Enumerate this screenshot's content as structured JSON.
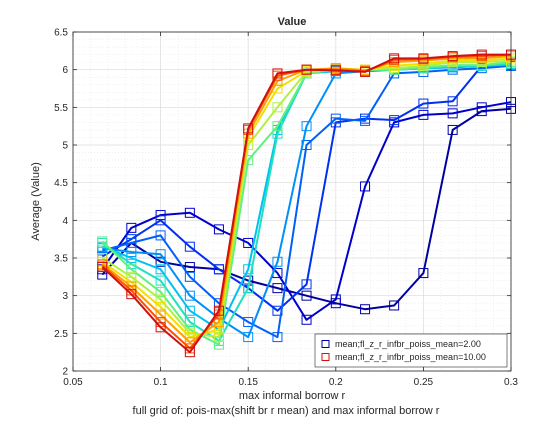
{
  "chart_data": {
    "type": "line",
    "title": "Value",
    "xlabel": "max informal borrow r",
    "ylabel": "Average (Value)",
    "caption": "full grid of: pois-max(shift br r mean) and max informal borrow r",
    "xlim": [
      0.05,
      0.3
    ],
    "ylim": [
      2,
      6.5
    ],
    "xticks": [
      0.05,
      0.1,
      0.15,
      0.2,
      0.25,
      0.3
    ],
    "xtick_labels": [
      "0.05",
      "0.1",
      "0.15",
      "0.2",
      "0.25",
      "0.3"
    ],
    "yticks": [
      2,
      2.5,
      3,
      3.5,
      4,
      4.5,
      5,
      5.5,
      6,
      6.5
    ],
    "ytick_labels": [
      "2",
      "2.5",
      "3",
      "3.5",
      "4",
      "4.5",
      "5",
      "5.5",
      "6",
      "6.5"
    ],
    "grid": true,
    "minor_grid": true,
    "legend_position": "bottom-right",
    "legend": [
      {
        "label": "mean;fl_z_r_infbr_poiss_mean=2.00",
        "color": "#0000a0"
      },
      {
        "label": "mean;fl_z_r_infbr_poiss_mean=10.00",
        "color": "#d01010"
      }
    ],
    "x": [
      0.0667,
      0.0833,
      0.1,
      0.1167,
      0.1333,
      0.15,
      0.1667,
      0.1833,
      0.2,
      0.2167,
      0.2333,
      0.25,
      0.2667,
      0.2833,
      0.3
    ],
    "series": [
      {
        "color": "#0000a0",
        "values": [
          3.28,
          3.7,
          3.45,
          3.38,
          3.35,
          3.2,
          3.1,
          3.0,
          2.9,
          2.82,
          2.87,
          3.3,
          5.2,
          5.45,
          5.48
        ]
      },
      {
        "color": "#0000cc",
        "values": [
          3.35,
          3.9,
          4.07,
          4.1,
          3.88,
          3.7,
          3.3,
          2.68,
          2.95,
          4.45,
          5.3,
          5.4,
          5.42,
          5.5,
          5.57
        ]
      },
      {
        "color": "#0030f0",
        "values": [
          3.52,
          3.75,
          4.0,
          3.65,
          3.35,
          3.1,
          2.8,
          3.15,
          5.3,
          5.35,
          5.33,
          5.55,
          5.58,
          6.05,
          6.05
        ]
      },
      {
        "color": "#0060f8",
        "values": [
          3.6,
          3.7,
          3.8,
          3.25,
          2.9,
          2.65,
          2.45,
          5.0,
          5.35,
          5.32,
          5.95,
          5.97,
          6.0,
          6.02,
          6.05
        ]
      },
      {
        "color": "#0090f8",
        "values": [
          3.63,
          3.58,
          3.55,
          3.0,
          2.7,
          2.45,
          3.45,
          5.25,
          5.95,
          5.98,
          6.0,
          6.02,
          6.03,
          6.05,
          6.06
        ]
      },
      {
        "color": "#00c0f0",
        "values": [
          3.65,
          3.5,
          3.35,
          2.8,
          2.55,
          3.35,
          5.2,
          5.95,
          5.98,
          6.0,
          6.0,
          6.02,
          6.04,
          6.05,
          6.07
        ]
      },
      {
        "color": "#20e0c0",
        "values": [
          3.7,
          3.42,
          3.2,
          2.65,
          2.4,
          3.1,
          5.15,
          5.95,
          6.0,
          6.0,
          6.0,
          6.02,
          6.05,
          6.05,
          6.08
        ]
      },
      {
        "color": "#60f080",
        "values": [
          3.72,
          3.35,
          3.05,
          2.55,
          2.35,
          4.8,
          5.25,
          5.95,
          6.0,
          6.0,
          6.0,
          6.03,
          6.06,
          6.06,
          6.1
        ]
      },
      {
        "color": "#b0f040",
        "values": [
          3.5,
          3.25,
          2.95,
          2.5,
          2.45,
          5.0,
          5.5,
          5.97,
          6.0,
          6.0,
          6.02,
          6.05,
          6.1,
          6.1,
          6.12
        ]
      },
      {
        "color": "#f0e000",
        "values": [
          3.45,
          3.18,
          2.85,
          2.45,
          2.55,
          5.1,
          5.75,
          5.98,
          6.02,
          6.0,
          6.05,
          6.08,
          6.12,
          6.12,
          6.15
        ]
      },
      {
        "color": "#ffa000",
        "values": [
          3.42,
          3.12,
          2.75,
          2.38,
          2.65,
          5.15,
          5.85,
          6.0,
          6.02,
          5.99,
          6.1,
          6.12,
          6.15,
          6.15,
          6.18
        ]
      },
      {
        "color": "#ff5000",
        "values": [
          3.4,
          3.07,
          2.65,
          2.3,
          2.75,
          5.2,
          5.92,
          6.0,
          6.0,
          5.98,
          6.13,
          6.14,
          6.17,
          6.18,
          6.2
        ]
      },
      {
        "color": "#d01010",
        "values": [
          3.38,
          3.02,
          2.58,
          2.25,
          2.8,
          5.22,
          5.95,
          6.0,
          5.99,
          5.97,
          6.15,
          6.15,
          6.18,
          6.2,
          6.2
        ]
      }
    ]
  }
}
